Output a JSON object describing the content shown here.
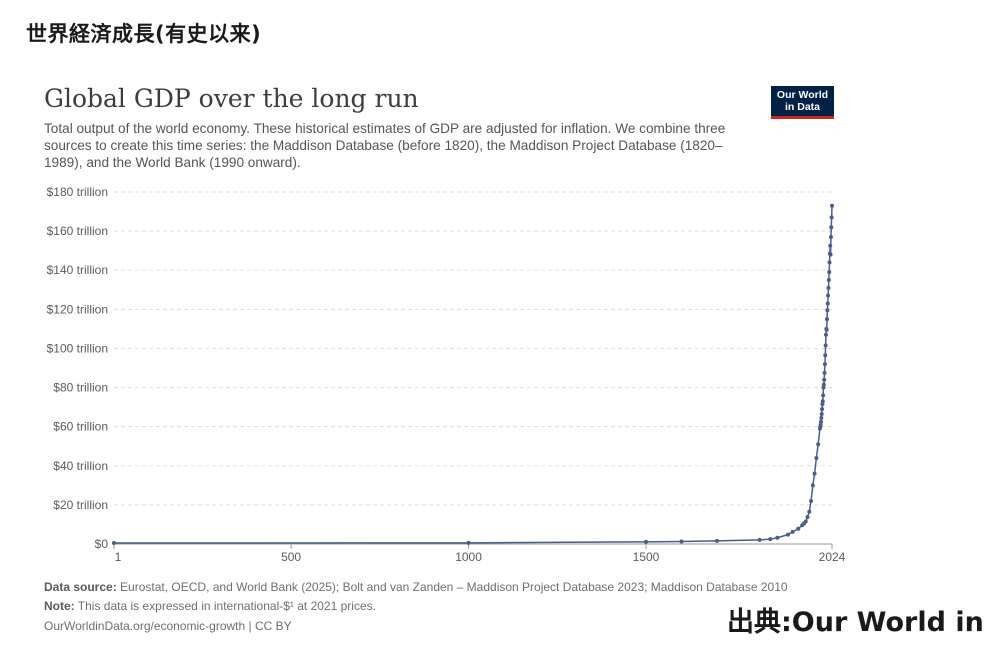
{
  "slide": {
    "title": "世界経済成長(有史以来)",
    "credit": "出典:Our World in"
  },
  "chart": {
    "title": "Global GDP over the long run",
    "subtitle": "Total output of the world economy. These historical estimates of GDP are adjusted for inflation. We combine three sources to create this time series: the Maddison Database (before 1820), the Maddison Project Database (1820–1989), and the World Bank (1990 onward).",
    "logo_line1": "Our World",
    "logo_line2": "in Data",
    "source_label": "Data source:",
    "source_text": "Eurostat, OECD, and World Bank (2025); Bolt and van Zanden – Maddison Project Database 2023; Maddison Database 2010",
    "note_label": "Note:",
    "note_text": "This data is expressed in international-$¹ at 2021 prices.",
    "url_text": "OurWorldinData.org/economic-growth | CC BY"
  },
  "colors": {
    "line": "#4c5c8c",
    "grid": "#dddddd",
    "axis": "#999999",
    "text": "#5b5b5b"
  },
  "chart_data": {
    "type": "line",
    "title": "Global GDP over the long run",
    "xlabel": "",
    "ylabel": "",
    "xlim": [
      1,
      2024
    ],
    "ylim": [
      0,
      180
    ],
    "x_ticks": [
      1,
      500,
      1000,
      1500,
      2024
    ],
    "y_ticks": [
      0,
      20,
      40,
      60,
      80,
      100,
      120,
      140,
      160,
      180
    ],
    "y_tick_labels": [
      "$0",
      "$20 trillion",
      "$40 trillion",
      "$60 trillion",
      "$80 trillion",
      "$100 trillion",
      "$120 trillion",
      "$140 trillion",
      "$160 trillion",
      "$180 trillion"
    ],
    "grid": true,
    "series": [
      {
        "x": [
          1,
          1000,
          1500,
          1600,
          1700,
          1820,
          1850,
          1870,
          1900,
          1913,
          1929,
          1940,
          1945,
          1950,
          1955,
          1960,
          1965,
          1970,
          1975,
          1980,
          1985,
          1990,
          1991,
          1992,
          1993,
          1994,
          1995,
          1996,
          1997,
          1998,
          1999,
          2000,
          2001,
          2002,
          2003,
          2004,
          2005,
          2006,
          2007,
          2008,
          2009,
          2010,
          2011,
          2012,
          2013,
          2014,
          2015,
          2016,
          2017,
          2018,
          2019,
          2020,
          2021,
          2022,
          2023,
          2024
        ],
        "values": [
          0.5,
          0.6,
          1.1,
          1.3,
          1.6,
          2.1,
          2.5,
          3.2,
          4.8,
          6.2,
          7.8,
          9.6,
          10.5,
          11.5,
          13.8,
          16.5,
          22,
          30,
          36,
          44,
          51,
          59,
          60,
          61,
          62.5,
          64.5,
          66.5,
          69,
          71.5,
          73,
          76,
          80,
          81.5,
          84,
          87.5,
          92,
          96.5,
          101.5,
          107,
          110,
          109.5,
          115,
          119.5,
          123,
          127,
          131,
          135,
          139,
          144,
          148.5,
          152.5,
          148,
          157,
          162,
          167,
          173
        ]
      }
    ]
  }
}
